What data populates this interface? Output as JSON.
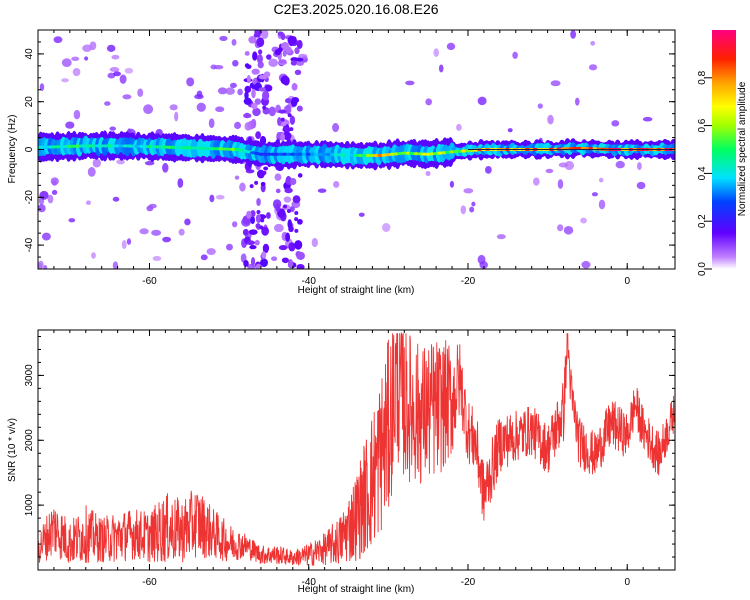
{
  "figure_title": "C2E3.2025.020.16.08.E26",
  "chart_data": [
    {
      "type": "heatmap",
      "title": "C2E3.2025.020.16.08.E26",
      "xlabel": "Height of straight line (km)",
      "ylabel": "Frequency (Hz)",
      "xlim": [
        -74,
        6
      ],
      "ylim": [
        -50,
        50
      ],
      "x_ticks": [
        -60,
        -40,
        -20,
        0
      ],
      "y_ticks": [
        -40,
        -20,
        0,
        20,
        40
      ],
      "x_tick_labels": [
        "-60",
        "-40",
        "-20",
        "0"
      ],
      "y_tick_labels": [
        "-40",
        "-20",
        "0",
        "20",
        "40"
      ],
      "grid": false,
      "colormap": "rainbow (purple to red)",
      "colorbar": {
        "label": "Normalized spectral amplitude",
        "range": [
          0,
          1
        ],
        "ticks": [
          0,
          0.2,
          0.4,
          0.6,
          0.8
        ],
        "tick_labels": [
          "0.0",
          "0.2",
          "0.4",
          "0.6",
          "0.8"
        ],
        "colors": [
          "#ffffff",
          "#c080ff",
          "#6000ff",
          "#0040ff",
          "#00e0ff",
          "#00ff60",
          "#a0ff00",
          "#ffff00",
          "#ffa000",
          "#ff2000",
          "#ff0080"
        ]
      },
      "ridge": {
        "description": "Dominant frequency band near 0 Hz",
        "points": [
          {
            "x": -73,
            "y": 1,
            "amp": 0.45
          },
          {
            "x": -68,
            "y": 1.5,
            "amp": 0.5
          },
          {
            "x": -63,
            "y": 1.5,
            "amp": 0.4
          },
          {
            "x": -58,
            "y": 1,
            "amp": 0.5
          },
          {
            "x": -53,
            "y": 0.5,
            "amp": 0.45
          },
          {
            "x": -49,
            "y": 0,
            "amp": 0.6
          },
          {
            "x": -46,
            "y": -2,
            "amp": 0.25
          },
          {
            "x": -42,
            "y": -2,
            "amp": 0.3
          },
          {
            "x": -38,
            "y": -2,
            "amp": 0.35
          },
          {
            "x": -34,
            "y": -2.5,
            "amp": 0.45
          },
          {
            "x": -31,
            "y": -2.5,
            "amp": 0.8
          },
          {
            "x": -28,
            "y": -1.5,
            "amp": 0.55
          },
          {
            "x": -25,
            "y": -2,
            "amp": 0.7
          },
          {
            "x": -22,
            "y": -1,
            "amp": 0.55
          },
          {
            "x": -18,
            "y": 0,
            "amp": 0.85
          },
          {
            "x": -14,
            "y": 0,
            "amp": 0.8
          },
          {
            "x": -10,
            "y": 0,
            "amp": 0.85
          },
          {
            "x": -6,
            "y": 0.5,
            "amp": 0.9
          },
          {
            "x": -2,
            "y": 0,
            "amp": 0.9
          },
          {
            "x": 2,
            "y": 0,
            "amp": 0.9
          },
          {
            "x": 6,
            "y": 0,
            "amp": 0.9
          }
        ]
      }
    },
    {
      "type": "line",
      "xlabel": "Height of straight line (km)",
      "ylabel": "SNR (10 * v/v)",
      "xlim": [
        -74,
        6
      ],
      "ylim": [
        0,
        3700
      ],
      "x_ticks": [
        -60,
        -40,
        -20,
        0
      ],
      "y_ticks": [
        1000,
        2000,
        3000
      ],
      "x_tick_labels": [
        "-60",
        "-40",
        "-20",
        "0"
      ],
      "y_tick_labels": [
        "1000",
        "2000",
        "3000"
      ],
      "grid": false,
      "color": "#ee3333",
      "series": [
        {
          "x": [
            -74,
            -72,
            -70,
            -68,
            -66,
            -64,
            -62,
            -60,
            -58,
            -56,
            -54,
            -52,
            -50,
            -48,
            -46,
            -44,
            -42,
            -40,
            -38,
            -36,
            -34,
            -32,
            -30,
            -29,
            -28,
            -26,
            -24,
            -22,
            -21,
            -20,
            -19,
            -18,
            -16,
            -14,
            -12,
            -10,
            -8,
            -7.5,
            -7,
            -6,
            -4,
            -2,
            0,
            1,
            2,
            4,
            6
          ],
          "y": [
            350,
            700,
            450,
            600,
            500,
            550,
            600,
            550,
            700,
            650,
            800,
            600,
            450,
            400,
            250,
            250,
            200,
            250,
            350,
            500,
            900,
            1500,
            2300,
            3100,
            2700,
            2500,
            2600,
            2700,
            3000,
            2200,
            2000,
            1200,
            2000,
            2100,
            2200,
            1900,
            2500,
            3600,
            2700,
            2000,
            1800,
            2300,
            2100,
            2600,
            2200,
            1800,
            2500
          ],
          "noise": [
            250,
            450,
            350,
            450,
            350,
            400,
            400,
            400,
            550,
            500,
            550,
            400,
            300,
            200,
            150,
            150,
            120,
            180,
            250,
            400,
            700,
            1100,
            1400,
            1300,
            1200,
            1100,
            1100,
            900,
            600,
            500,
            500,
            500,
            450,
            400,
            400,
            400,
            500,
            300,
            400,
            400,
            350,
            400,
            350,
            350,
            350,
            350,
            300
          ]
        }
      ]
    }
  ]
}
